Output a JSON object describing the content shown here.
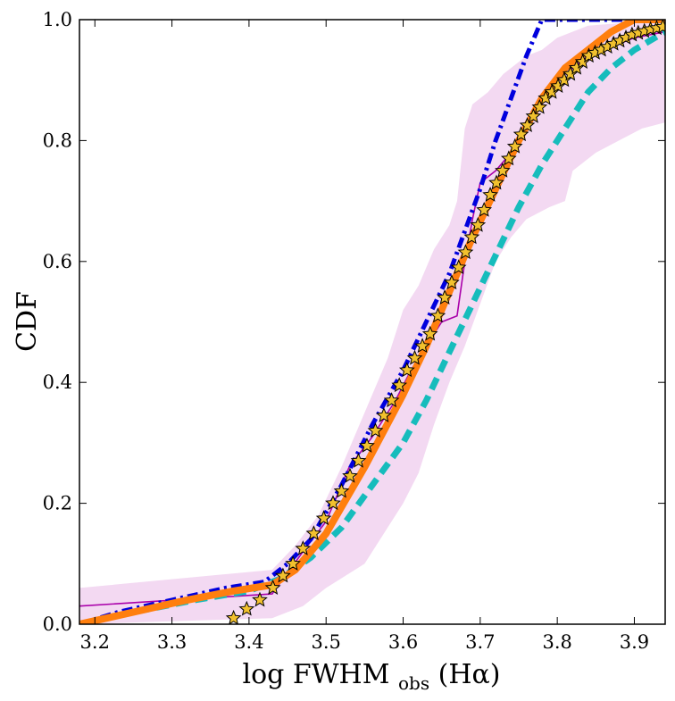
{
  "chart_data": {
    "type": "line",
    "xlabel": "log FWHM",
    "xlabel_sub": "obs",
    "xlabel_tail": "(Hα)",
    "ylabel": "CDF",
    "xlim": [
      3.18,
      3.94
    ],
    "ylim": [
      0.0,
      1.0
    ],
    "x_ticks": [
      3.2,
      3.3,
      3.4,
      3.5,
      3.6,
      3.7,
      3.8,
      3.9
    ],
    "x_tick_labels": [
      "3.2",
      "3.3",
      "3.4",
      "3.5",
      "3.6",
      "3.7",
      "3.8",
      "3.9"
    ],
    "y_ticks": [
      0.0,
      0.2,
      0.4,
      0.6,
      0.8,
      1.0
    ],
    "y_tick_labels": [
      "0.0",
      "0.2",
      "0.4",
      "0.6",
      "0.8",
      "1.0"
    ],
    "grid": false,
    "legend": "none",
    "band": {
      "color": "#f3d9f2",
      "upper": [
        [
          3.18,
          0.06
        ],
        [
          3.43,
          0.09
        ],
        [
          3.46,
          0.13
        ],
        [
          3.49,
          0.18
        ],
        [
          3.52,
          0.26
        ],
        [
          3.55,
          0.35
        ],
        [
          3.58,
          0.44
        ],
        [
          3.6,
          0.52
        ],
        [
          3.62,
          0.56
        ],
        [
          3.64,
          0.62
        ],
        [
          3.66,
          0.66
        ],
        [
          3.67,
          0.7
        ],
        [
          3.68,
          0.82
        ],
        [
          3.69,
          0.86
        ],
        [
          3.71,
          0.88
        ],
        [
          3.73,
          0.91
        ],
        [
          3.75,
          0.93
        ],
        [
          3.76,
          0.94
        ],
        [
          3.78,
          0.95
        ],
        [
          3.8,
          0.97
        ],
        [
          3.82,
          0.98
        ],
        [
          3.84,
          0.99
        ],
        [
          3.94,
          1.0
        ]
      ],
      "lower": [
        [
          3.18,
          0.0
        ],
        [
          3.43,
          0.01
        ],
        [
          3.45,
          0.02
        ],
        [
          3.47,
          0.03
        ],
        [
          3.5,
          0.06
        ],
        [
          3.55,
          0.1
        ],
        [
          3.6,
          0.2
        ],
        [
          3.62,
          0.25
        ],
        [
          3.64,
          0.33
        ],
        [
          3.66,
          0.4
        ],
        [
          3.68,
          0.46
        ],
        [
          3.7,
          0.53
        ],
        [
          3.72,
          0.6
        ],
        [
          3.74,
          0.64
        ],
        [
          3.76,
          0.67
        ],
        [
          3.79,
          0.69
        ],
        [
          3.81,
          0.7
        ],
        [
          3.82,
          0.75
        ],
        [
          3.85,
          0.78
        ],
        [
          3.88,
          0.8
        ],
        [
          3.91,
          0.82
        ],
        [
          3.94,
          0.83
        ]
      ]
    },
    "series": [
      {
        "style": "thin-solid",
        "color": "#aa00aa",
        "points": [
          [
            3.18,
            0.03
          ],
          [
            3.43,
            0.05
          ],
          [
            3.47,
            0.12
          ],
          [
            3.5,
            0.17
          ],
          [
            3.53,
            0.26
          ],
          [
            3.56,
            0.31
          ],
          [
            3.59,
            0.37
          ],
          [
            3.61,
            0.42
          ],
          [
            3.63,
            0.46
          ],
          [
            3.65,
            0.5
          ],
          [
            3.67,
            0.51
          ],
          [
            3.68,
            0.6
          ],
          [
            3.69,
            0.67
          ],
          [
            3.7,
            0.73
          ],
          [
            3.72,
            0.75
          ],
          [
            3.74,
            0.78
          ],
          [
            3.76,
            0.82
          ],
          [
            3.78,
            0.86
          ],
          [
            3.8,
            0.9
          ],
          [
            3.82,
            0.92
          ],
          [
            3.84,
            0.94
          ],
          [
            3.86,
            0.95
          ],
          [
            3.88,
            0.96
          ],
          [
            3.9,
            0.97
          ],
          [
            3.94,
            0.98
          ]
        ]
      },
      {
        "style": "dash-dot",
        "color": "#0000dd",
        "points": [
          [
            3.18,
            0.0
          ],
          [
            3.23,
            0.02
          ],
          [
            3.3,
            0.04
          ],
          [
            3.37,
            0.06
          ],
          [
            3.42,
            0.07
          ],
          [
            3.45,
            0.1
          ],
          [
            3.48,
            0.14
          ],
          [
            3.52,
            0.23
          ],
          [
            3.56,
            0.33
          ],
          [
            3.6,
            0.42
          ],
          [
            3.63,
            0.5
          ],
          [
            3.66,
            0.58
          ],
          [
            3.68,
            0.65
          ],
          [
            3.7,
            0.72
          ],
          [
            3.72,
            0.8
          ],
          [
            3.74,
            0.87
          ],
          [
            3.76,
            0.94
          ],
          [
            3.78,
            1.0
          ],
          [
            3.94,
            1.0
          ]
        ]
      },
      {
        "style": "dashed",
        "color": "#16bcbc",
        "points": [
          [
            3.18,
            0.0
          ],
          [
            3.25,
            0.02
          ],
          [
            3.33,
            0.04
          ],
          [
            3.4,
            0.055
          ],
          [
            3.44,
            0.075
          ],
          [
            3.48,
            0.11
          ],
          [
            3.52,
            0.16
          ],
          [
            3.56,
            0.23
          ],
          [
            3.6,
            0.3
          ],
          [
            3.63,
            0.37
          ],
          [
            3.66,
            0.45
          ],
          [
            3.69,
            0.53
          ],
          [
            3.72,
            0.61
          ],
          [
            3.75,
            0.69
          ],
          [
            3.78,
            0.76
          ],
          [
            3.81,
            0.82
          ],
          [
            3.84,
            0.88
          ],
          [
            3.87,
            0.92
          ],
          [
            3.9,
            0.95
          ],
          [
            3.94,
            0.98
          ]
        ]
      },
      {
        "style": "thick-solid",
        "color": "#ff7f0e",
        "points": [
          [
            3.18,
            0.0
          ],
          [
            3.25,
            0.02
          ],
          [
            3.32,
            0.04
          ],
          [
            3.38,
            0.055
          ],
          [
            3.43,
            0.065
          ],
          [
            3.46,
            0.09
          ],
          [
            3.5,
            0.15
          ],
          [
            3.55,
            0.26
          ],
          [
            3.6,
            0.38
          ],
          [
            3.63,
            0.46
          ],
          [
            3.66,
            0.55
          ],
          [
            3.69,
            0.64
          ],
          [
            3.72,
            0.72
          ],
          [
            3.75,
            0.8
          ],
          [
            3.78,
            0.87
          ],
          [
            3.81,
            0.92
          ],
          [
            3.84,
            0.95
          ],
          [
            3.87,
            0.98
          ],
          [
            3.9,
            1.0
          ],
          [
            3.94,
            1.0
          ]
        ]
      },
      {
        "style": "stars",
        "color": "#f2c12e",
        "points": [
          [
            3.38,
            0.01
          ],
          [
            3.397,
            0.025
          ],
          [
            3.414,
            0.04
          ],
          [
            3.431,
            0.06
          ],
          [
            3.444,
            0.08
          ],
          [
            3.457,
            0.1
          ],
          [
            3.47,
            0.125
          ],
          [
            3.484,
            0.15
          ],
          [
            3.497,
            0.175
          ],
          [
            3.509,
            0.2
          ],
          [
            3.52,
            0.22
          ],
          [
            3.531,
            0.245
          ],
          [
            3.542,
            0.27
          ],
          [
            3.553,
            0.295
          ],
          [
            3.564,
            0.32
          ],
          [
            3.575,
            0.345
          ],
          [
            3.585,
            0.37
          ],
          [
            3.595,
            0.395
          ],
          [
            3.605,
            0.42
          ],
          [
            3.615,
            0.44
          ],
          [
            3.625,
            0.46
          ],
          [
            3.635,
            0.48
          ],
          [
            3.645,
            0.51
          ],
          [
            3.654,
            0.54
          ],
          [
            3.663,
            0.565
          ],
          [
            3.672,
            0.59
          ],
          [
            3.681,
            0.615
          ],
          [
            3.689,
            0.64
          ],
          [
            3.697,
            0.66
          ],
          [
            3.705,
            0.685
          ],
          [
            3.713,
            0.71
          ],
          [
            3.721,
            0.73
          ],
          [
            3.729,
            0.75
          ],
          [
            3.737,
            0.77
          ],
          [
            3.745,
            0.79
          ],
          [
            3.753,
            0.81
          ],
          [
            3.761,
            0.825
          ],
          [
            3.769,
            0.84
          ],
          [
            3.777,
            0.855
          ],
          [
            3.785,
            0.87
          ],
          [
            3.793,
            0.88
          ],
          [
            3.801,
            0.89
          ],
          [
            3.809,
            0.9
          ],
          [
            3.817,
            0.91
          ],
          [
            3.825,
            0.92
          ],
          [
            3.833,
            0.93
          ],
          [
            3.841,
            0.94
          ],
          [
            3.849,
            0.945
          ],
          [
            3.857,
            0.95
          ],
          [
            3.865,
            0.955
          ],
          [
            3.873,
            0.96
          ],
          [
            3.881,
            0.965
          ],
          [
            3.889,
            0.97
          ],
          [
            3.897,
            0.975
          ],
          [
            3.905,
            0.978
          ],
          [
            3.913,
            0.981
          ],
          [
            3.921,
            0.984
          ],
          [
            3.929,
            0.986
          ],
          [
            3.937,
            0.988
          ]
        ]
      }
    ]
  }
}
